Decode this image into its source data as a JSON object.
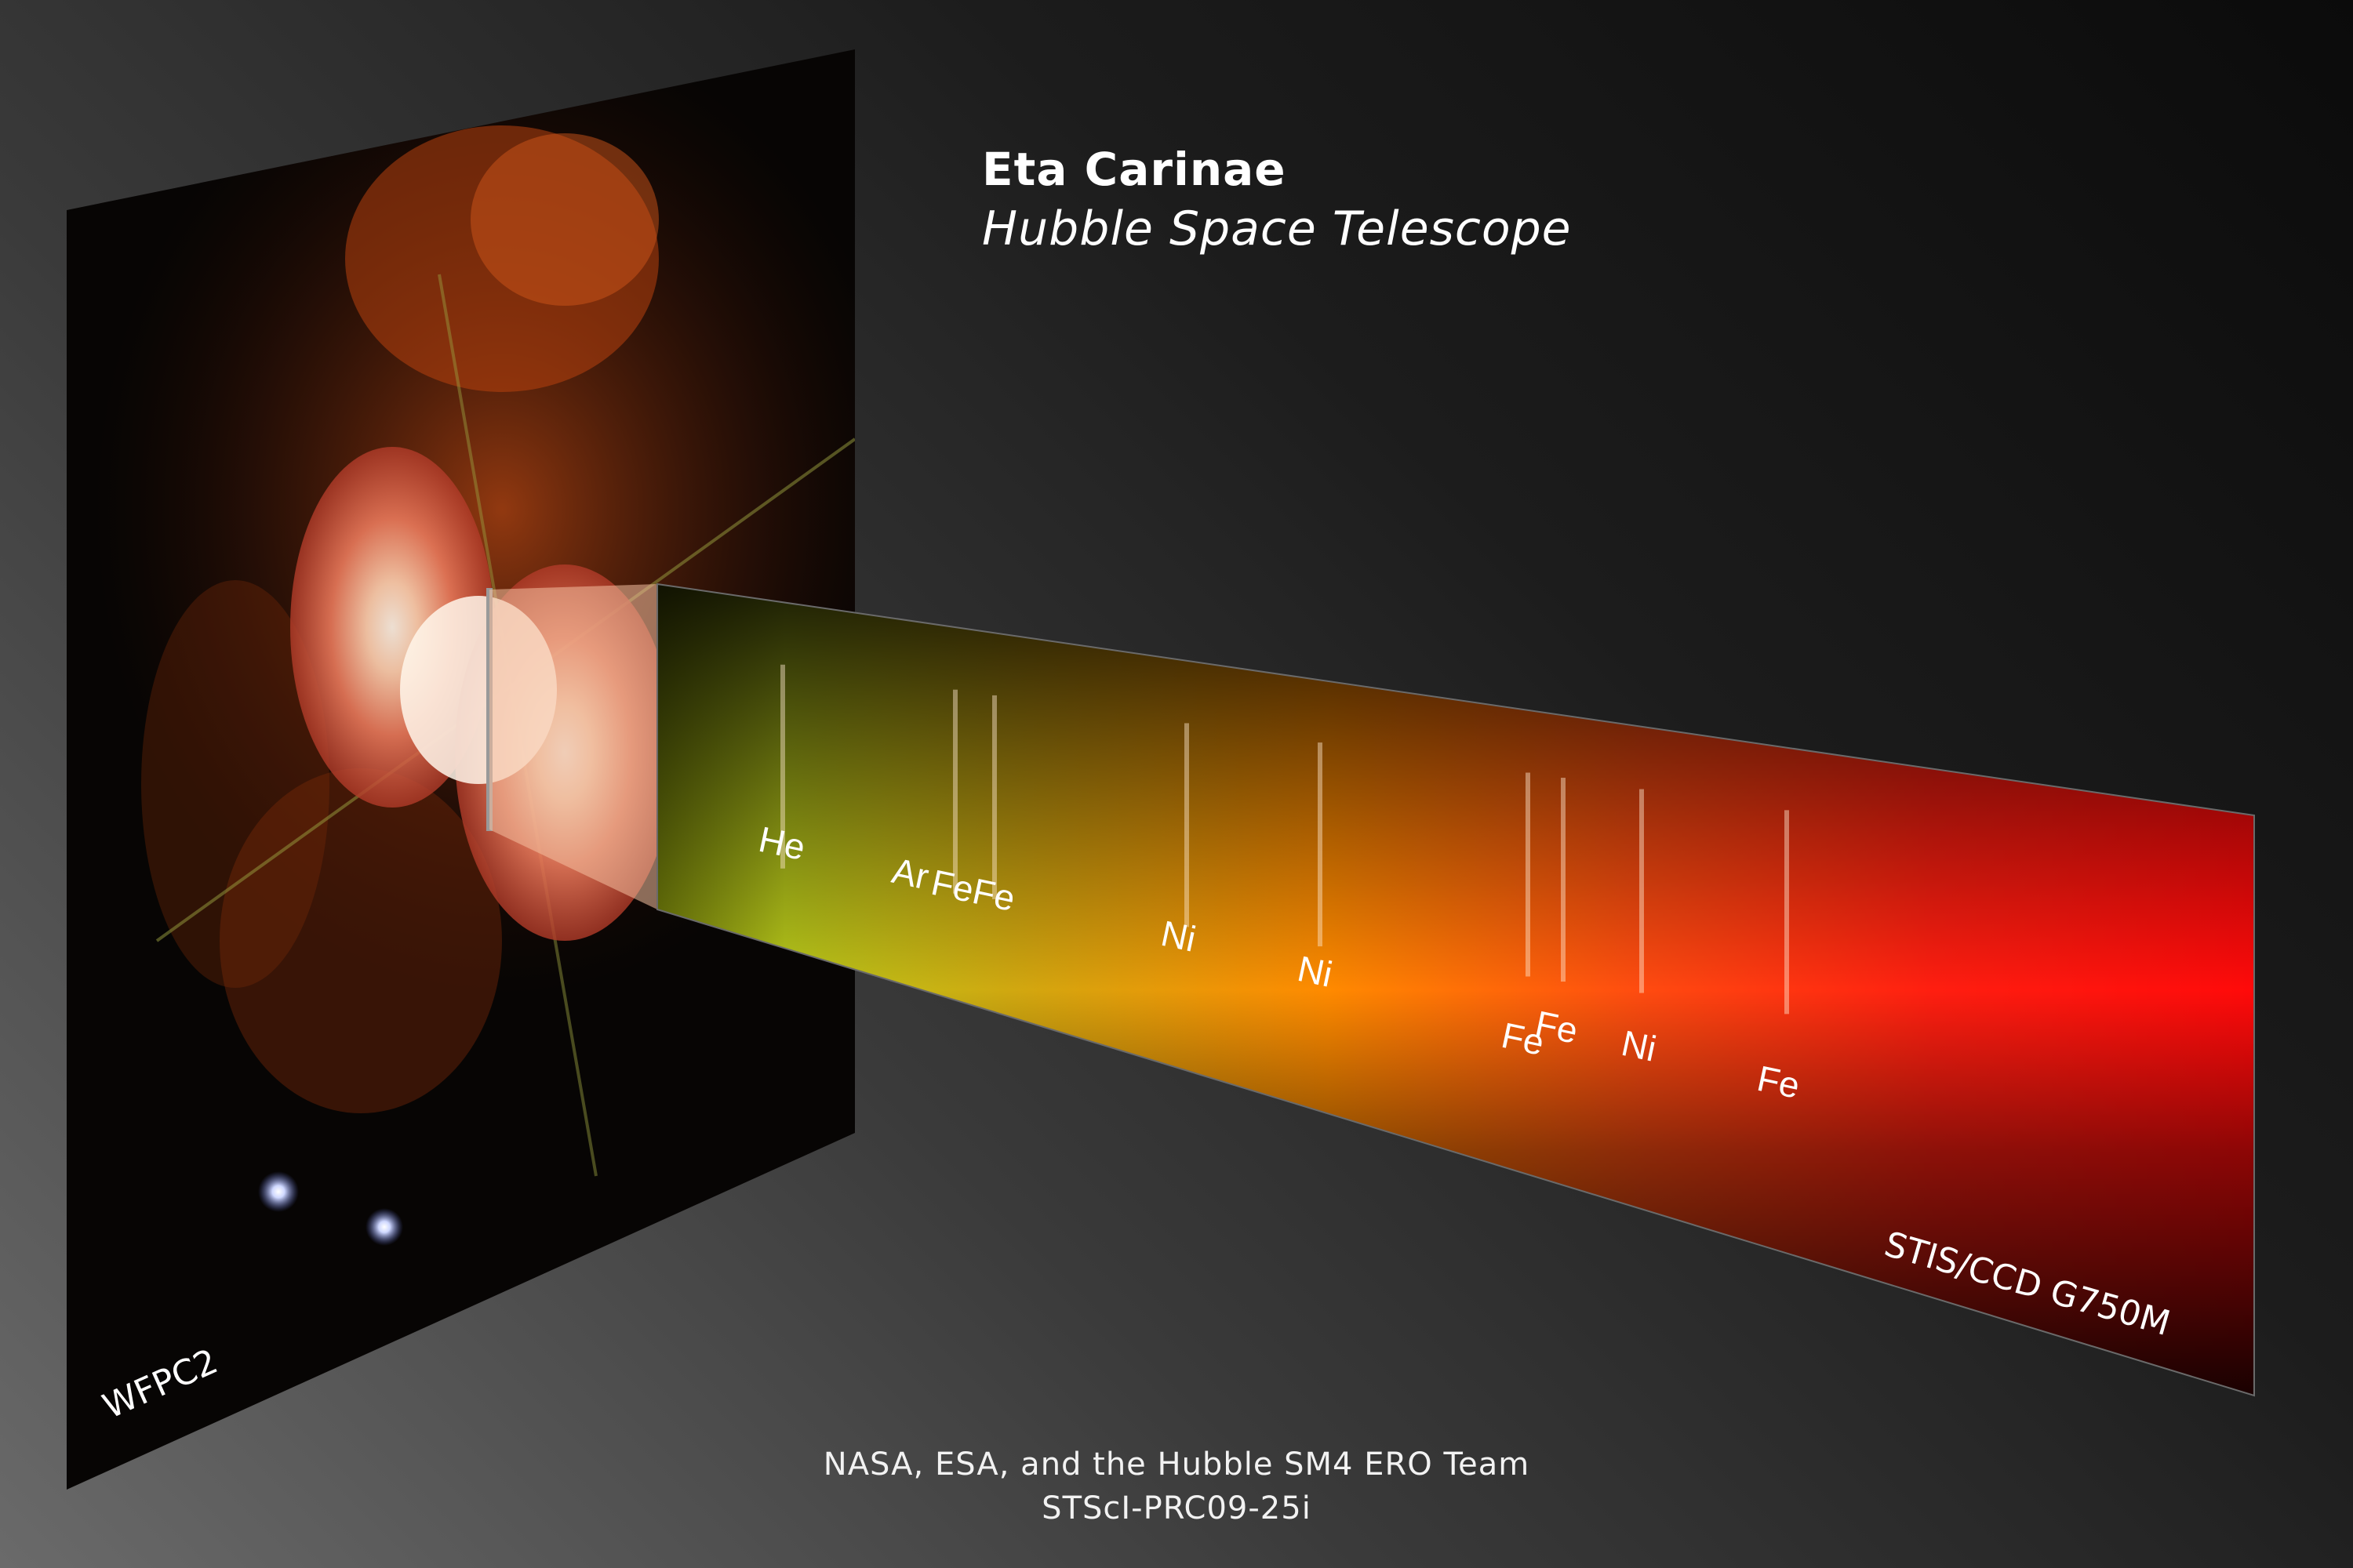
{
  "title": "Eta Carinae",
  "subtitle": "Hubble Space Telescope",
  "image_panel": {
    "instrument_label": "WFPC2",
    "subject": "Eta Carinae bipolar nebula (Homunculus) image"
  },
  "spectrum_panel": {
    "instrument_label": "STIS/CCD G750M",
    "line_labels": [
      "He",
      "Ar",
      "FeFe",
      "Ni",
      "Ni",
      "Fe",
      "Fe",
      "Ni",
      "Fe"
    ]
  },
  "credits": {
    "line1": "NASA, ESA, and the Hubble SM4 ERO Team",
    "line2": "STScI-PRC09-25i"
  },
  "colors": {
    "spectrum_green": "#b8c81a",
    "spectrum_orange": "#ff8a00",
    "spectrum_red": "#ff1010",
    "nebula": "#e8785a"
  }
}
